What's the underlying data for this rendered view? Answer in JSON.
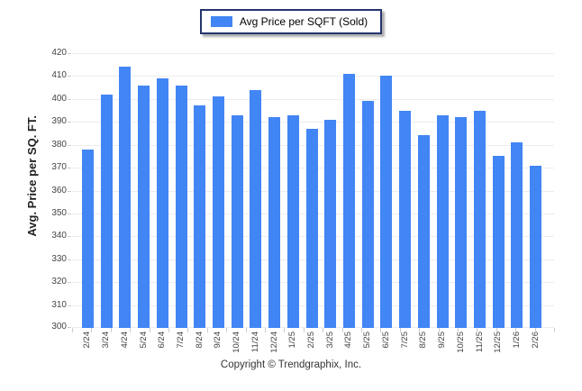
{
  "legend": {
    "label": "Avg Price per SQFT (Sold)",
    "swatch_color": "#4285f4"
  },
  "chart_data": {
    "type": "bar",
    "title": "",
    "ylabel": "Avg. Price per SQ. FT.",
    "xlabel": "",
    "ylim": [
      300,
      420
    ],
    "ytick_step": 10,
    "grid": "horizontal",
    "legend_position": "top-center",
    "bar_color": "#4285f4",
    "categories": [
      "2/24",
      "3/24",
      "4/24",
      "5/24",
      "6/24",
      "7/24",
      "8/24",
      "9/24",
      "10/24",
      "11/24",
      "12/24",
      "1/25",
      "2/25",
      "3/25",
      "4/25",
      "5/25",
      "6/25",
      "7/25",
      "8/25",
      "9/25",
      "10/25",
      "11/25",
      "12/25",
      "1/26",
      "2/26"
    ],
    "values": [
      378,
      402,
      414,
      406,
      409,
      406,
      397,
      401,
      393,
      404,
      392,
      393,
      387,
      391,
      411,
      399,
      410,
      395,
      384,
      393,
      392,
      395,
      375,
      381,
      371
    ]
  },
  "footer": {
    "copyright": "Copyright © Trendgraphix, Inc."
  },
  "colors": {
    "bar": "#4285f4",
    "gridline": "#ececec",
    "axis_text": "#444444",
    "legend_border": "#24356e"
  }
}
